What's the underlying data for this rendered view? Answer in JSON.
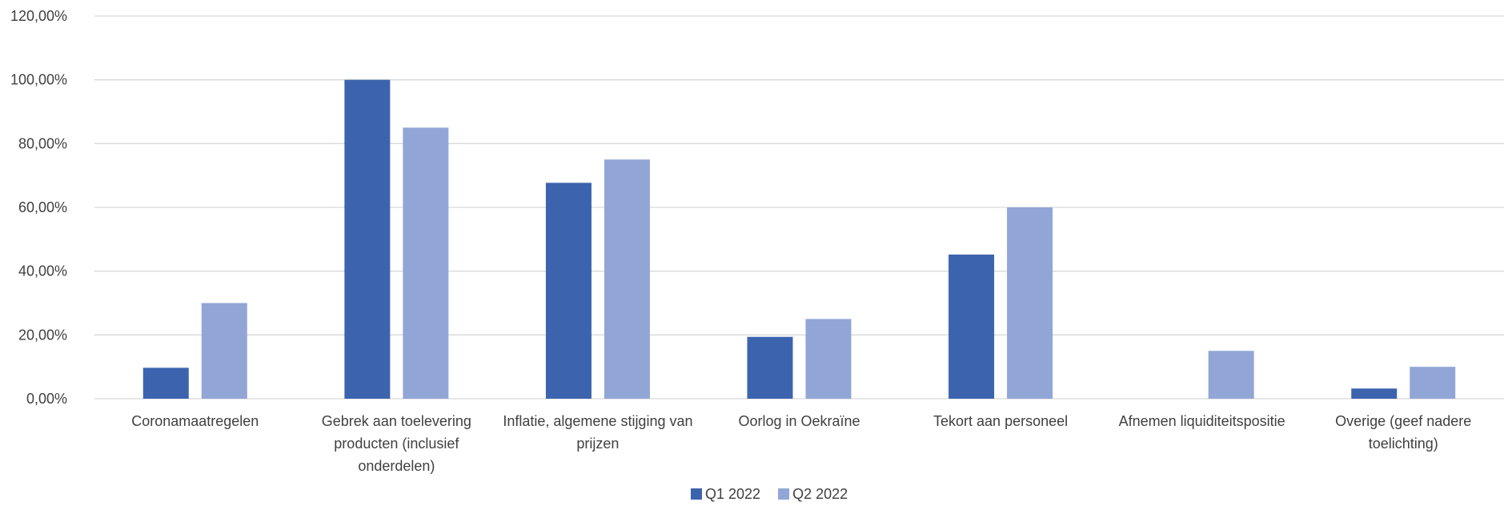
{
  "chart_data": {
    "type": "bar",
    "categories": [
      [
        "Coronamaatregelen"
      ],
      [
        "Gebrek aan toelevering",
        "producten (inclusief",
        "onderdelen)"
      ],
      [
        "Inflatie, algemene stijging van",
        "prijzen"
      ],
      [
        "Oorlog in Oekraïne"
      ],
      [
        "Tekort aan personeel"
      ],
      [
        "Afnemen liquiditeitspositie"
      ],
      [
        "Overige (geef nadere",
        "toelichting)"
      ]
    ],
    "series": [
      {
        "name": "Q1 2022",
        "color": "#3c64ae",
        "values": [
          0.097,
          1.0,
          0.677,
          0.194,
          0.452,
          0.0,
          0.032
        ]
      },
      {
        "name": "Q2 2022",
        "color": "#91a6d6",
        "values": [
          0.3,
          0.85,
          0.75,
          0.25,
          0.6,
          0.15,
          0.1
        ]
      }
    ],
    "ylim": [
      0,
      1.2
    ],
    "yticks": [
      "0,00%",
      "20,00%",
      "40,00%",
      "60,00%",
      "80,00%",
      "100,00%",
      "120,00%"
    ],
    "grid": true,
    "legend_position": "bottom"
  }
}
